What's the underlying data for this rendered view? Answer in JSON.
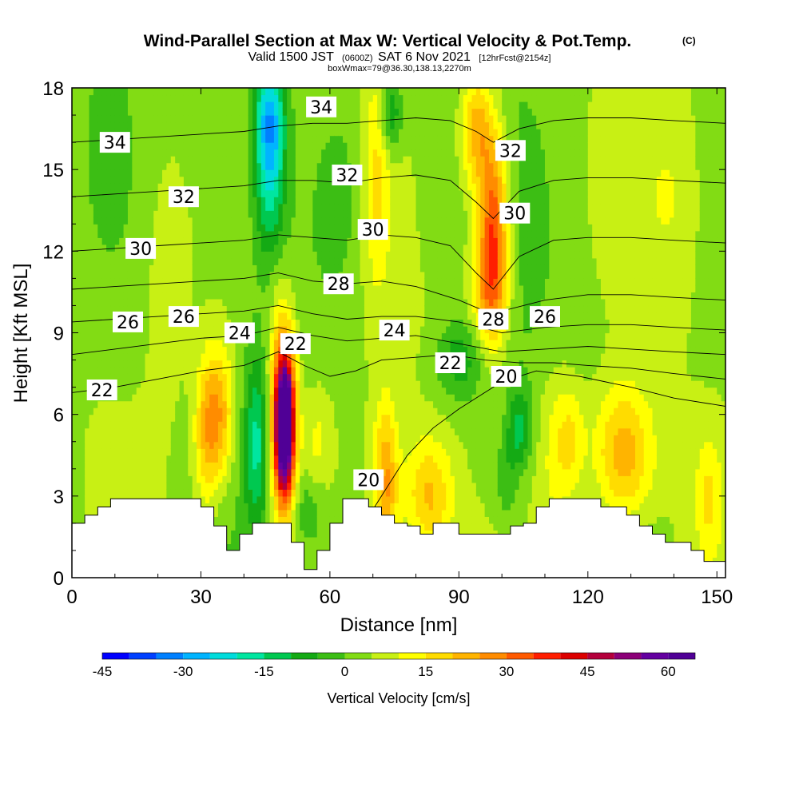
{
  "chart_data": {
    "type": "heatmap",
    "title": "Wind-Parallel Section at Max W: Vertical Velocity & Pot.Temp.",
    "title_mark": "(C)",
    "subtitle": {
      "valid": "Valid 1500 JST",
      "utc": "(0600Z)",
      "date": "SAT 6 Nov 2021",
      "forecast": "[12hrFcst@2154z]"
    },
    "box_info": "boxWmax=79@36.30,138.13,2270m",
    "xlabel": "Distance [nm]",
    "ylabel": "Height [Kft MSL]",
    "xlim": [
      0,
      152
    ],
    "ylim": [
      0,
      18
    ],
    "x_ticks": [
      0,
      30,
      60,
      90,
      120,
      150
    ],
    "y_ticks": [
      0,
      3,
      6,
      9,
      12,
      15,
      18
    ],
    "x_tick_labels": [
      "0",
      "30",
      "60",
      "90",
      "120",
      "150"
    ],
    "y_tick_labels": [
      "0",
      "3",
      "6",
      "9",
      "12",
      "15",
      "18"
    ],
    "colorbar": {
      "title": "Vertical Velocity [cm/s]",
      "min": -45,
      "max": 65,
      "step": 5,
      "ticks": [
        "-45",
        "-30",
        "-15",
        "0",
        "15",
        "30",
        "45",
        "60"
      ],
      "tick_values": [
        -45,
        -30,
        -15,
        0,
        15,
        30,
        45,
        60
      ],
      "colors": [
        "#0000ff",
        "#0040ff",
        "#0080ff",
        "#00b4ff",
        "#00dcdc",
        "#00e6a0",
        "#00c850",
        "#14aa14",
        "#3cbe14",
        "#82dc14",
        "#c8f014",
        "#ffff00",
        "#ffdc00",
        "#ffb400",
        "#ff8c00",
        "#ff5a00",
        "#ff1e00",
        "#dc0000",
        "#b4003c",
        "#8c0078",
        "#6400a0",
        "#500096"
      ]
    },
    "velocity_features": [
      {
        "x": 49.5,
        "y": 5.6,
        "sx": 1.5,
        "sy": 1.7,
        "value": 60
      },
      {
        "x": 49.0,
        "y": 6.0,
        "sx": 2.2,
        "sy": 2.8,
        "value": 30
      },
      {
        "x": 43.0,
        "y": 5.0,
        "sx": 2.0,
        "sy": 2.2,
        "value": -18
      },
      {
        "x": 34.0,
        "y": 6.0,
        "sx": 2.6,
        "sy": 1.8,
        "value": 22
      },
      {
        "x": 31.0,
        "y": 5.0,
        "sx": 2.0,
        "sy": 2.0,
        "value": 12
      },
      {
        "x": 46.0,
        "y": 17.0,
        "sx": 2.5,
        "sy": 1.5,
        "value": -25
      },
      {
        "x": 46.0,
        "y": 14.5,
        "sx": 2.5,
        "sy": 2.0,
        "value": -18
      },
      {
        "x": 98.0,
        "y": 13.0,
        "sx": 2.5,
        "sy": 2.5,
        "value": 32
      },
      {
        "x": 94.0,
        "y": 16.5,
        "sx": 2.5,
        "sy": 1.5,
        "value": 20
      },
      {
        "x": 97.0,
        "y": 10.5,
        "sx": 3.0,
        "sy": 1.5,
        "value": 15
      },
      {
        "x": 90.0,
        "y": 8.0,
        "sx": 4.0,
        "sy": 1.0,
        "value": -12
      },
      {
        "x": 71.0,
        "y": 15.0,
        "sx": 2.0,
        "sy": 3.0,
        "value": 12
      },
      {
        "x": 74.0,
        "y": 17.0,
        "sx": 2.0,
        "sy": 1.0,
        "value": -15
      },
      {
        "x": 73.0,
        "y": 3.5,
        "sx": 2.0,
        "sy": 2.0,
        "value": 22
      },
      {
        "x": 83.0,
        "y": 3.0,
        "sx": 4.0,
        "sy": 1.5,
        "value": 18
      },
      {
        "x": 104.0,
        "y": 5.5,
        "sx": 2.0,
        "sy": 1.0,
        "value": -15
      },
      {
        "x": 101.0,
        "y": 3.5,
        "sx": 2.0,
        "sy": 1.0,
        "value": -8
      },
      {
        "x": 128.0,
        "y": 4.5,
        "sx": 5.0,
        "sy": 1.8,
        "value": 22
      },
      {
        "x": 116.0,
        "y": 5.0,
        "sx": 2.5,
        "sy": 1.5,
        "value": 12
      },
      {
        "x": 112.0,
        "y": 4.5,
        "sx": 3.0,
        "sy": 2.5,
        "value": 8
      },
      {
        "x": 55.0,
        "y": 2.5,
        "sx": 3.0,
        "sy": 1.0,
        "value": -8
      },
      {
        "x": 57.0,
        "y": 5.0,
        "sx": 2.5,
        "sy": 1.5,
        "value": 8
      },
      {
        "x": 62.0,
        "y": 14.0,
        "sx": 3.0,
        "sy": 2.0,
        "value": -6
      },
      {
        "x": 84.0,
        "y": 14.5,
        "sx": 3.0,
        "sy": 3.0,
        "value": -5
      },
      {
        "x": 140.0,
        "y": 14.0,
        "sx": 5.0,
        "sy": 3.0,
        "value": 6
      },
      {
        "x": 7.0,
        "y": 16.0,
        "sx": 4.0,
        "sy": 3.0,
        "value": -5
      },
      {
        "x": 22.0,
        "y": 12.0,
        "sx": 4.0,
        "sy": 4.0,
        "value": 5
      },
      {
        "x": 148.0,
        "y": 3.0,
        "sx": 2.0,
        "sy": 1.5,
        "value": 10
      }
    ],
    "terrain": {
      "x": [
        0,
        3,
        6,
        9,
        12,
        15,
        18,
        21,
        24,
        27,
        30,
        33,
        36,
        39,
        42,
        45,
        48,
        51,
        54,
        57,
        60,
        63,
        66,
        69,
        72,
        75,
        78,
        81,
        84,
        87,
        90,
        93,
        96,
        99,
        102,
        105,
        108,
        111,
        114,
        117,
        120,
        123,
        126,
        129,
        132,
        135,
        138,
        141,
        144,
        147,
        150,
        152
      ],
      "y": [
        2.0,
        2.3,
        2.6,
        2.9,
        2.9,
        2.9,
        2.9,
        2.9,
        2.9,
        2.9,
        2.6,
        1.9,
        1.0,
        1.6,
        2.0,
        2.0,
        2.0,
        1.3,
        0.3,
        1.0,
        2.0,
        2.9,
        2.9,
        2.6,
        2.3,
        2.0,
        1.9,
        1.6,
        2.0,
        2.0,
        1.6,
        1.6,
        1.6,
        1.6,
        1.9,
        2.0,
        2.6,
        2.9,
        2.9,
        2.9,
        2.9,
        2.6,
        2.6,
        2.3,
        1.9,
        1.6,
        1.3,
        1.3,
        1.0,
        0.6,
        0.6,
        0.6
      ]
    },
    "potential_temperature_contours": [
      {
        "value": 20,
        "x": [
          68,
          72,
          78,
          84,
          90,
          96,
          100,
          108,
          118,
          130,
          140,
          152
        ],
        "y": [
          2.0,
          3.0,
          4.5,
          5.5,
          6.2,
          6.8,
          7.2,
          7.6,
          7.4,
          7.0,
          6.6,
          6.3
        ]
      },
      {
        "value": 22,
        "x": [
          0,
          10,
          20,
          30,
          40,
          48,
          54,
          60,
          66,
          72,
          80,
          88,
          96,
          104,
          112,
          120,
          130,
          140,
          152
        ],
        "y": [
          6.8,
          7.0,
          7.3,
          7.6,
          7.8,
          8.3,
          7.8,
          7.4,
          7.6,
          8.0,
          8.1,
          8.2,
          8.0,
          7.9,
          7.9,
          7.8,
          7.7,
          7.5,
          7.3
        ]
      },
      {
        "value": 24,
        "x": [
          0,
          10,
          20,
          30,
          40,
          48,
          56,
          64,
          72,
          80,
          90,
          100,
          110,
          120,
          130,
          140,
          152
        ],
        "y": [
          8.2,
          8.4,
          8.6,
          8.8,
          8.9,
          9.2,
          8.9,
          8.7,
          8.8,
          8.9,
          8.6,
          8.3,
          8.4,
          8.5,
          8.4,
          8.3,
          8.2
        ]
      },
      {
        "value": 26,
        "x": [
          0,
          10,
          20,
          30,
          40,
          48,
          56,
          64,
          72,
          80,
          90,
          100,
          110,
          120,
          130,
          140,
          152
        ],
        "y": [
          9.4,
          9.5,
          9.6,
          9.7,
          9.8,
          10.0,
          9.7,
          9.5,
          9.6,
          9.6,
          9.4,
          9.0,
          9.2,
          9.3,
          9.3,
          9.2,
          9.1
        ]
      },
      {
        "value": 28,
        "x": [
          0,
          10,
          20,
          30,
          40,
          48,
          56,
          64,
          72,
          80,
          90,
          96,
          100,
          110,
          120,
          130,
          140,
          152
        ],
        "y": [
          10.6,
          10.7,
          10.8,
          10.9,
          11.0,
          11.2,
          10.9,
          10.8,
          10.9,
          10.7,
          10.2,
          9.8,
          9.8,
          10.2,
          10.4,
          10.4,
          10.3,
          10.2
        ]
      },
      {
        "value": 30,
        "x": [
          0,
          10,
          20,
          30,
          40,
          48,
          56,
          64,
          72,
          80,
          88,
          94,
          98,
          104,
          112,
          120,
          130,
          140,
          152
        ],
        "y": [
          12.0,
          12.1,
          12.2,
          12.3,
          12.4,
          12.6,
          12.5,
          12.4,
          12.6,
          12.5,
          12.2,
          11.2,
          10.6,
          11.8,
          12.4,
          12.5,
          12.5,
          12.4,
          12.3
        ]
      },
      {
        "value": 32,
        "x": [
          0,
          10,
          20,
          30,
          40,
          48,
          56,
          64,
          72,
          80,
          88,
          94,
          98,
          104,
          112,
          120,
          130,
          140,
          152
        ],
        "y": [
          14.0,
          14.1,
          14.2,
          14.3,
          14.4,
          14.6,
          14.6,
          14.5,
          14.7,
          14.8,
          14.6,
          13.8,
          13.2,
          14.2,
          14.6,
          14.7,
          14.7,
          14.6,
          14.5
        ]
      },
      {
        "value": 34,
        "x": [
          0,
          10,
          20,
          30,
          40,
          48,
          56,
          64,
          72,
          80,
          88,
          94,
          98,
          104,
          112,
          120,
          130,
          140,
          152
        ],
        "y": [
          16.0,
          16.1,
          16.2,
          16.3,
          16.4,
          16.6,
          16.7,
          16.7,
          16.8,
          16.9,
          16.8,
          16.4,
          16.0,
          16.5,
          16.8,
          16.9,
          16.9,
          16.8,
          16.7
        ]
      }
    ],
    "contour_labels": [
      {
        "text": "34",
        "x": 10,
        "y": 16.0
      },
      {
        "text": "34",
        "x": 58,
        "y": 17.3
      },
      {
        "text": "32",
        "x": 102,
        "y": 15.7
      },
      {
        "text": "32",
        "x": 26,
        "y": 14.0
      },
      {
        "text": "32",
        "x": 64,
        "y": 14.8
      },
      {
        "text": "30",
        "x": 103,
        "y": 13.4
      },
      {
        "text": "30",
        "x": 70,
        "y": 12.8
      },
      {
        "text": "30",
        "x": 16,
        "y": 12.1
      },
      {
        "text": "28",
        "x": 62,
        "y": 10.8
      },
      {
        "text": "28",
        "x": 98,
        "y": 9.5
      },
      {
        "text": "26",
        "x": 13,
        "y": 9.4
      },
      {
        "text": "26",
        "x": 26,
        "y": 9.6
      },
      {
        "text": "26",
        "x": 110,
        "y": 9.6
      },
      {
        "text": "24",
        "x": 39,
        "y": 9.0
      },
      {
        "text": "24",
        "x": 75,
        "y": 9.1
      },
      {
        "text": "22",
        "x": 52,
        "y": 8.6
      },
      {
        "text": "22",
        "x": 88,
        "y": 7.9
      },
      {
        "text": "22",
        "x": 7,
        "y": 6.9
      },
      {
        "text": "20",
        "x": 101,
        "y": 7.4
      },
      {
        "text": "20",
        "x": 69,
        "y": 3.6
      }
    ]
  }
}
